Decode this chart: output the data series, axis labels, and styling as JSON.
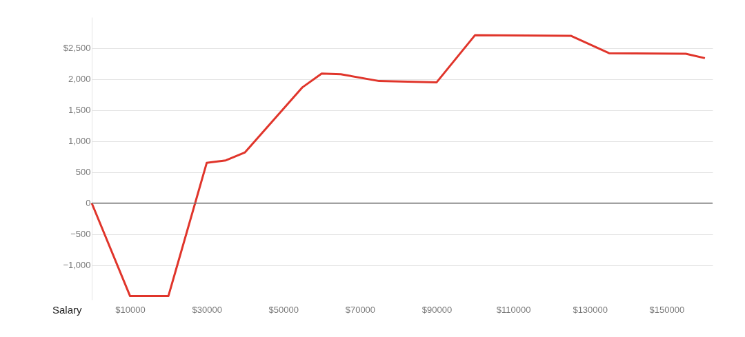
{
  "chart_data": {
    "type": "line",
    "xlabel": "Salary",
    "x": [
      0,
      10000,
      20000,
      30000,
      35000,
      40000,
      55000,
      60000,
      65000,
      75000,
      90000,
      100000,
      125000,
      135000,
      155000,
      160000
    ],
    "series": [
      {
        "color": "#e0352b",
        "values": [
          0,
          -1500,
          -1500,
          650,
          690,
          820,
          1870,
          2090,
          2080,
          1970,
          1950,
          2710,
          2700,
          2420,
          2410,
          2340
        ]
      }
    ],
    "xlim": [
      0,
      162000
    ],
    "ylim": [
      -1560,
      3000
    ],
    "xticks": [
      {
        "value": 10000,
        "label": "$10000"
      },
      {
        "value": 30000,
        "label": "$30000"
      },
      {
        "value": 50000,
        "label": "$50000"
      },
      {
        "value": 70000,
        "label": "$70000"
      },
      {
        "value": 90000,
        "label": "$90000"
      },
      {
        "value": 110000,
        "label": "$110000"
      },
      {
        "value": 130000,
        "label": "$130000"
      },
      {
        "value": 150000,
        "label": "$150000"
      }
    ],
    "yticks": [
      {
        "value": -1000,
        "label": "−1,000"
      },
      {
        "value": -500,
        "label": "−500"
      },
      0,
      {
        "value": 500,
        "label": "500"
      },
      {
        "value": 1000,
        "label": "1,000"
      },
      {
        "value": 1500,
        "label": "1,500"
      },
      {
        "value": 2000,
        "label": "2,000"
      },
      {
        "value": 2500,
        "label": "$2,500"
      }
    ],
    "ref_lines": [
      {
        "axis": "y",
        "value": 0,
        "label": null,
        "color": "#777777"
      }
    ],
    "grid": "y",
    "marker": "none",
    "line_style": "solid"
  }
}
